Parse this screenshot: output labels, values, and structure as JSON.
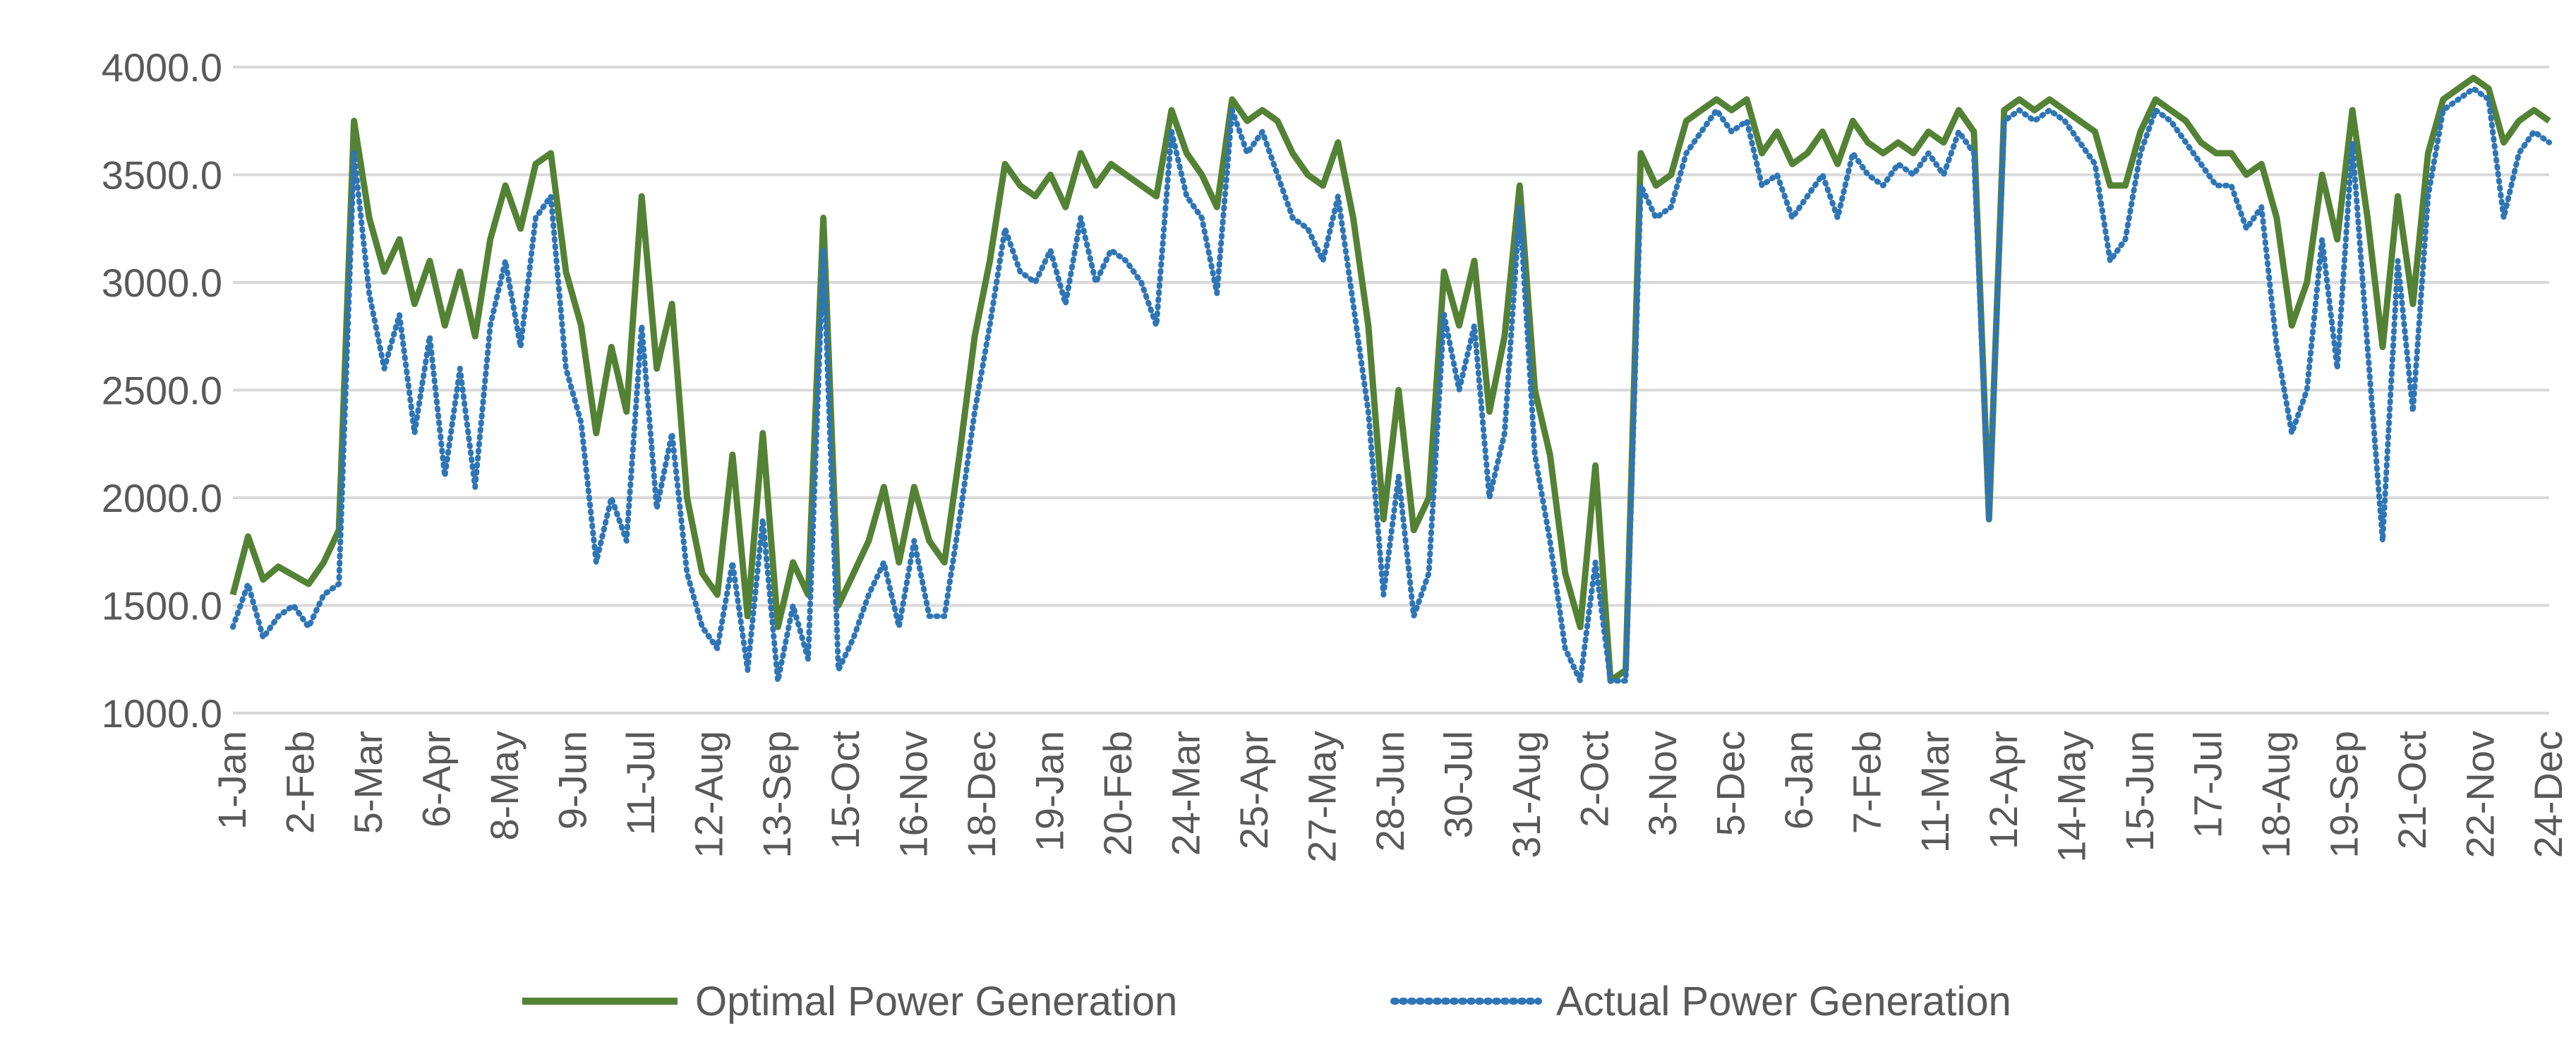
{
  "chart_data": {
    "type": "line",
    "title": "",
    "xlabel": "",
    "ylabel": "",
    "ylim": [
      1000,
      4000
    ],
    "grid": true,
    "legend_position": "bottom",
    "y_tick_labels": [
      "1000.0",
      "1500.0",
      "2000.0",
      "2500.0",
      "3000.0",
      "3500.0",
      "4000.0"
    ],
    "y_ticks": [
      1000,
      1500,
      2000,
      2500,
      3000,
      3500,
      4000
    ],
    "x_tick_labels": [
      "1-Jan",
      "2-Feb",
      "5-Mar",
      "6-Apr",
      "8-May",
      "9-Jun",
      "11-Jul",
      "12-Aug",
      "13-Sep",
      "15-Oct",
      "16-Nov",
      "18-Dec",
      "19-Jan",
      "20-Feb",
      "24-Mar",
      "25-Apr",
      "27-May",
      "28-Jun",
      "30-Jul",
      "31-Aug",
      "2-Oct",
      "3-Nov",
      "5-Dec",
      "6-Jan",
      "7-Feb",
      "11-Mar",
      "12-Apr",
      "14-May",
      "15-Jun",
      "17-Jul",
      "18-Aug",
      "19-Sep",
      "21-Oct",
      "22-Nov",
      "24-Dec"
    ],
    "series": [
      {
        "name": "Optimal Power Generation",
        "color": "#548235",
        "style": "solid",
        "values": [
          1550,
          1820,
          1620,
          1680,
          1640,
          1600,
          1700,
          1850,
          3750,
          3300,
          3050,
          3200,
          2900,
          3100,
          2800,
          3050,
          2750,
          3200,
          3450,
          3250,
          3550,
          3600,
          3050,
          2800,
          2300,
          2700,
          2400,
          3400,
          2600,
          2900,
          2000,
          1650,
          1550,
          2200,
          1450,
          2300,
          1400,
          1700,
          1550,
          3300,
          1500,
          1650,
          1800,
          2050,
          1700,
          2050,
          1800,
          1700,
          2200,
          2750,
          3100,
          3550,
          3450,
          3400,
          3500,
          3350,
          3600,
          3450,
          3550,
          3500,
          3450,
          3400,
          3800,
          3600,
          3500,
          3350,
          3850,
          3750,
          3800,
          3750,
          3600,
          3500,
          3450,
          3650,
          3300,
          2800,
          1900,
          2500,
          1850,
          2000,
          3050,
          2800,
          3100,
          2400,
          2750,
          3450,
          2500,
          2200,
          1650,
          1400,
          2150,
          1150,
          1200,
          3600,
          3450,
          3500,
          3750,
          3800,
          3850,
          3800,
          3850,
          3600,
          3700,
          3550,
          3600,
          3700,
          3550,
          3750,
          3650,
          3600,
          3650,
          3600,
          3700,
          3650,
          3800,
          3700,
          1900,
          3800,
          3850,
          3800,
          3850,
          3800,
          3750,
          3700,
          3450,
          3450,
          3700,
          3850,
          3800,
          3750,
          3650,
          3600,
          3600,
          3500,
          3550,
          3300,
          2800,
          3000,
          3500,
          3200,
          3800,
          3300,
          2700,
          3400,
          2900,
          3600,
          3850,
          3900,
          3950,
          3900,
          3650,
          3750,
          3800,
          3750
        ]
      },
      {
        "name": "Actual Power Generation",
        "color": "#2e75b6",
        "style": "dotted",
        "values": [
          1400,
          1600,
          1350,
          1450,
          1500,
          1400,
          1550,
          1600,
          3600,
          2950,
          2600,
          2850,
          2300,
          2750,
          2100,
          2600,
          2050,
          2800,
          3100,
          2700,
          3300,
          3400,
          2600,
          2350,
          1700,
          2000,
          1800,
          2800,
          1950,
          2300,
          1650,
          1400,
          1300,
          1700,
          1200,
          1900,
          1150,
          1500,
          1250,
          3150,
          1200,
          1350,
          1550,
          1700,
          1400,
          1800,
          1450,
          1450,
          1900,
          2400,
          2800,
          3250,
          3050,
          3000,
          3150,
          2900,
          3300,
          3000,
          3150,
          3100,
          3000,
          2800,
          3700,
          3400,
          3300,
          2950,
          3800,
          3600,
          3700,
          3500,
          3300,
          3250,
          3100,
          3400,
          2900,
          2400,
          1550,
          2100,
          1450,
          1650,
          2850,
          2500,
          2800,
          2000,
          2300,
          3350,
          2200,
          1800,
          1300,
          1150,
          1700,
          1150,
          1150,
          3450,
          3300,
          3350,
          3600,
          3700,
          3800,
          3700,
          3750,
          3450,
          3500,
          3300,
          3400,
          3500,
          3300,
          3600,
          3500,
          3450,
          3550,
          3500,
          3600,
          3500,
          3700,
          3600,
          1900,
          3750,
          3800,
          3750,
          3800,
          3750,
          3650,
          3550,
          3100,
          3200,
          3600,
          3800,
          3750,
          3650,
          3550,
          3450,
          3450,
          3250,
          3350,
          2700,
          2300,
          2500,
          3200,
          2600,
          3650,
          2700,
          1800,
          3100,
          2400,
          3400,
          3800,
          3850,
          3900,
          3850,
          3300,
          3600,
          3700,
          3650
        ]
      }
    ]
  }
}
